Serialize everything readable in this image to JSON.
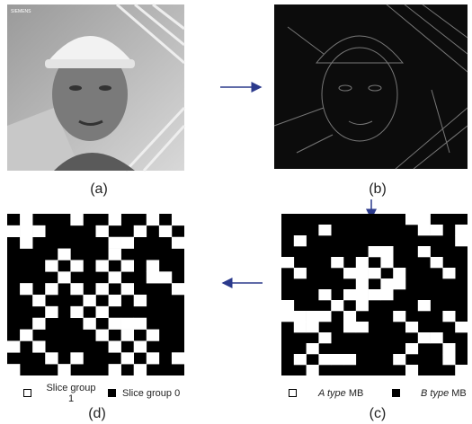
{
  "figure": {
    "image_text": "SIEMENS",
    "panels": [
      {
        "label": "(a)"
      },
      {
        "label": "(b)"
      },
      {
        "label": "(c)",
        "legend": [
          {
            "label": "A type",
            "unit": "MB"
          },
          {
            "label": "B type",
            "unit": "MB"
          }
        ]
      },
      {
        "label": "(d)",
        "legend": [
          {
            "label": "Slice group 1"
          },
          {
            "label": "Slice group 0"
          }
        ]
      }
    ]
  }
}
